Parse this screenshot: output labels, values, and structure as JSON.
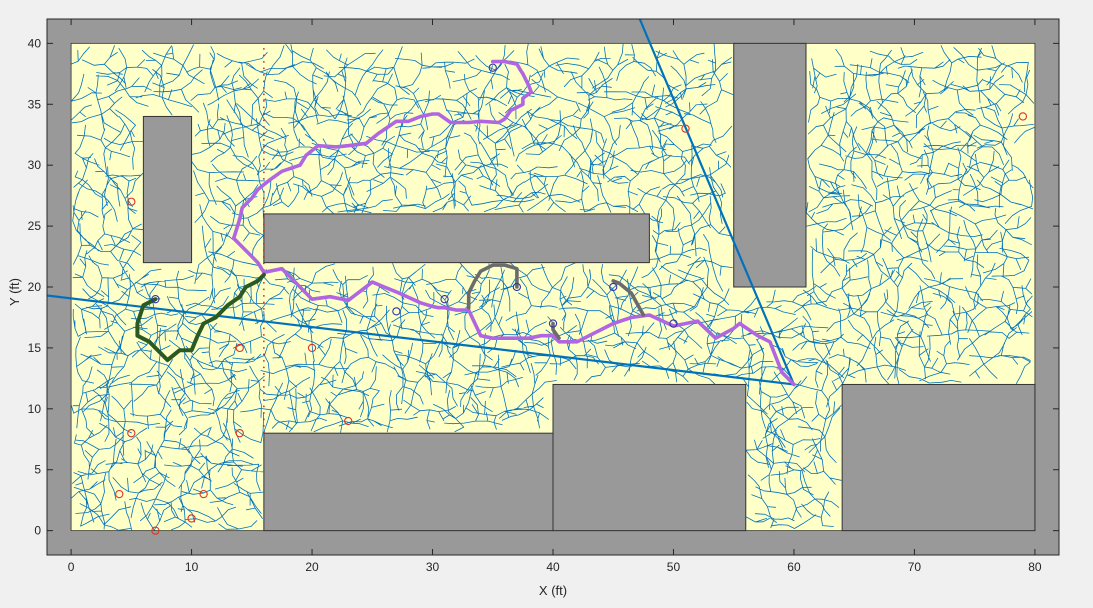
{
  "chart_data": {
    "type": "scatter",
    "title": "",
    "xlabel": "X (ft)",
    "ylabel": "Y (ft)",
    "xlim": [
      -2,
      82
    ],
    "ylim": [
      -2,
      42
    ],
    "xticks": [
      0,
      10,
      20,
      30,
      40,
      50,
      60,
      70,
      80
    ],
    "yticks": [
      0,
      5,
      10,
      15,
      20,
      25,
      30,
      35,
      40
    ],
    "grid": false,
    "legend": "none",
    "colors": {
      "figure_bg": "#f0f0f0",
      "axes_bg": "#999999",
      "free_space": "#ffffc8",
      "obstacle": "#999999",
      "edge": "#333333",
      "tree": "#0072bd",
      "line": "#0072bd",
      "path_main": "#b066e0",
      "path_green": "#2a5a22",
      "path_gray": "#6b6b6b",
      "marker_blue": "#3333aa",
      "marker_red": "#dd3322",
      "dotted": "#cc2222"
    },
    "free_space": {
      "x": [
        0,
        80
      ],
      "y": [
        0,
        40
      ]
    },
    "obstacles": [
      {
        "x": [
          6,
          10
        ],
        "y": [
          22,
          34
        ]
      },
      {
        "x": [
          16,
          48
        ],
        "y": [
          22,
          26
        ]
      },
      {
        "x": [
          55,
          61
        ],
        "y": [
          20,
          40
        ]
      },
      {
        "x": [
          16,
          40
        ],
        "y": [
          0,
          8
        ]
      },
      {
        "x": [
          40,
          56
        ],
        "y": [
          0,
          12
        ]
      },
      {
        "x": [
          64,
          80
        ],
        "y": [
          0,
          12
        ]
      }
    ],
    "lines": [
      {
        "name": "",
        "x": [
          -2,
          60
        ],
        "y": [
          19.3,
          12
        ]
      },
      {
        "name": "",
        "x": [
          47.2,
          60
        ],
        "y": [
          42,
          12
        ]
      }
    ],
    "dotted_line": {
      "x": [
        16,
        16
      ],
      "y": [
        8,
        40
      ]
    },
    "paths": [
      {
        "style": "main",
        "x": [
          35,
          36,
          37,
          37.3,
          37.5,
          38,
          38.2,
          37.5,
          37.5,
          36.5,
          36,
          35.5,
          34,
          33,
          31.5,
          30.5,
          30,
          29,
          28,
          27,
          25.5,
          24.5,
          23,
          22,
          20.5,
          19.5,
          19,
          17.5,
          16.5,
          15.5,
          15,
          14.2,
          14,
          13.5,
          15,
          15.5,
          16,
          17.5,
          18.5,
          20,
          21.5,
          23,
          25,
          27,
          29,
          30,
          30.5,
          31,
          32,
          33,
          34,
          35,
          36,
          37,
          38,
          39,
          40,
          40.5,
          42,
          43,
          44,
          45,
          46.5,
          48,
          50,
          52,
          53.5,
          55,
          55.5,
          57,
          58,
          59,
          60
        ],
        "y": [
          38.5,
          38.5,
          38.3,
          37.8,
          37.5,
          36.5,
          36,
          35.5,
          35,
          34.5,
          33.8,
          33.5,
          33.6,
          33.5,
          33.5,
          34.2,
          34.2,
          34,
          33.6,
          33.6,
          32.6,
          31.8,
          31.6,
          31.5,
          31.6,
          30.8,
          30,
          29.5,
          28.8,
          28,
          27.3,
          26.5,
          25.6,
          24,
          22.5,
          22,
          21.2,
          21.5,
          20.5,
          19,
          19.2,
          18.9,
          20.4,
          19.6,
          18.7,
          18.4,
          18.3,
          18.3,
          18.1,
          18.1,
          16,
          15.8,
          15.8,
          15.8,
          15.8,
          16,
          16,
          15.5,
          15.5,
          16,
          16.5,
          17,
          17.5,
          17.7,
          16.8,
          17.2,
          15.8,
          16.6,
          17,
          16,
          15.5,
          13,
          12
        ]
      },
      {
        "style": "green",
        "x": [
          7,
          6,
          5.5,
          5.5,
          6.5,
          7.5,
          8,
          9,
          10,
          10.5,
          11,
          12,
          13,
          14,
          14.5,
          15.5,
          16
        ],
        "y": [
          19,
          18.5,
          17,
          16,
          15.5,
          14.5,
          14,
          14.8,
          14.8,
          16,
          17,
          17.5,
          18.5,
          19.2,
          20,
          20.5,
          21
        ]
      },
      {
        "style": "gray",
        "x": [
          33,
          33,
          33.5,
          34,
          35,
          36,
          37,
          37
        ],
        "y": [
          18.3,
          19.5,
          20.5,
          21.3,
          21.8,
          21.8,
          21.5,
          20
        ]
      },
      {
        "style": "gray",
        "x": [
          45,
          45.5,
          46.5,
          47.5
        ],
        "y": [
          20.5,
          20.3,
          19.5,
          17.7
        ]
      },
      {
        "style": "gray",
        "x": [
          40,
          40,
          40.5
        ],
        "y": [
          17,
          16.5,
          15.8
        ]
      }
    ],
    "blue_markers": {
      "x": [
        35,
        7,
        27,
        31,
        37,
        40,
        45,
        50
      ],
      "y": [
        38,
        19,
        18,
        19,
        20,
        17,
        20,
        17
      ]
    },
    "red_markers": {
      "x": [
        5,
        14,
        5,
        14,
        20,
        23,
        4,
        11,
        10,
        7,
        51,
        79
      ],
      "y": [
        27,
        15,
        8,
        8,
        15,
        9,
        3,
        3,
        1,
        0,
        33,
        34
      ]
    }
  }
}
